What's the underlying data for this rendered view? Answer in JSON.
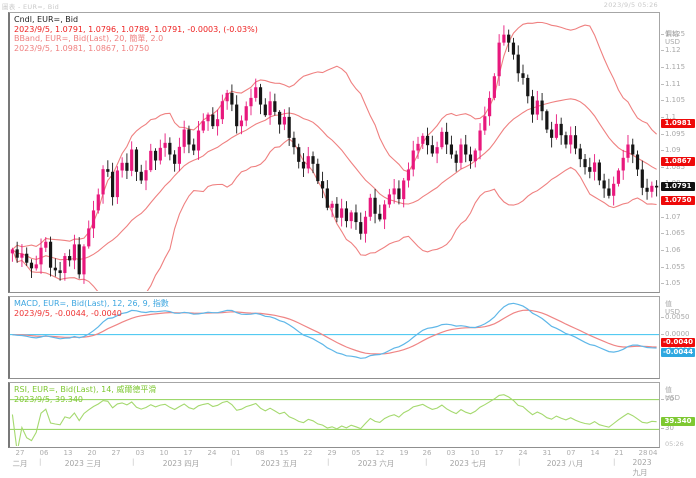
{
  "window": {
    "top_left_note": "圖表 - EUR=, Bid",
    "top_right_note": "2023/9/5 05:26"
  },
  "colors": {
    "up_candle": "#e8187d",
    "down_candle": "#161616",
    "bollinger": "#ef8080",
    "macd_line": "#5fb7e8",
    "signal_line": "#ef8585",
    "zero_line": "#3cc2f0",
    "rsi_line": "#a5d96f",
    "rsi_levels": "#8fd257",
    "badge_red": "#ee0a0a",
    "badge_black": "#111111",
    "badge_blue": "#2ea8e0",
    "badge_green": "#7ec832",
    "axis_text": "#a9a9a9"
  },
  "price_panel": {
    "legend": [
      {
        "text": "Cndl, EUR=, Bid",
        "color": "#222222"
      },
      {
        "text": "2023/9/5, 1.0791, 1.0796, 1.0789, 1.0791, -0.0003, (-0.03%)",
        "color": "#ee2222"
      },
      {
        "text": "BBand, EUR=, Bid(Last), 20, 簡單, 2.0",
        "color": "#ef8080"
      },
      {
        "text": "2023/9/5, 1.0981, 1.0867, 1.0750",
        "color": "#ef8080"
      }
    ],
    "axis_title": "價格",
    "axis_unit": "USD",
    "ticks": [
      "1.125",
      "1.12",
      "1.115",
      "1.11",
      "1.105",
      "1.1",
      "1.095",
      "1.09",
      "1.085",
      "1.08",
      "1.075",
      "1.07",
      "1.065",
      "1.06",
      "1.055",
      "1.05"
    ],
    "badges": [
      {
        "label": "1.0981",
        "value": 1.0981,
        "bg": "badge_red"
      },
      {
        "label": "1.0867",
        "value": 1.0867,
        "bg": "badge_red"
      },
      {
        "label": "1.0791",
        "value": 1.0791,
        "bg": "badge_black"
      },
      {
        "label": "1.0750",
        "value": 1.075,
        "bg": "badge_red"
      }
    ]
  },
  "macd_panel": {
    "legend": [
      {
        "text": "MACD, EUR=, Bid(Last), 12, 26, 9, 指數",
        "color": "#3da6e0"
      },
      {
        "text": "2023/9/5, -0.0044, -0.0040",
        "color": "#ee3333"
      }
    ],
    "axis_title": "值",
    "axis_unit": "USD",
    "ticks": [
      "0.0050",
      "0.0000",
      "-0.0050"
    ],
    "badges": [
      {
        "label": "-0.0040",
        "value": -0.004,
        "bg": "badge_red"
      },
      {
        "label": "-0.0044",
        "value": -0.0044,
        "bg": "badge_blue"
      }
    ]
  },
  "rsi_panel": {
    "legend": [
      {
        "text": "RSI, EUR=, Bid(Last), 14, 威爾德平滑",
        "color": "#7ec832"
      },
      {
        "text": "2023/9/5, 39.340",
        "color": "#7ec832"
      }
    ],
    "axis_title": "值",
    "axis_unit": "USD",
    "ticks": [
      "70",
      "30"
    ],
    "levels": [
      70,
      30
    ],
    "badges": [
      {
        "label": "39.340",
        "value": 39.34,
        "bg": "badge_green"
      }
    ],
    "timestamp": "05:26"
  },
  "x_axis": {
    "week_labels": [
      "27",
      "06",
      "13",
      "20",
      "27",
      "03",
      "10",
      "17",
      "24",
      "01",
      "08",
      "15",
      "22",
      "29",
      "05",
      "12",
      "19",
      "26",
      "03",
      "10",
      "17",
      "24",
      "31",
      "07",
      "14",
      "21",
      "28",
      "04"
    ],
    "months": [
      {
        "label": "二月",
        "f": 0.018
      },
      {
        "label": "2023 三月",
        "f": 0.115
      },
      {
        "label": "2023 四月",
        "f": 0.265
      },
      {
        "label": "2023 五月",
        "f": 0.415
      },
      {
        "label": "2023 六月",
        "f": 0.565
      },
      {
        "label": "2023 七月",
        "f": 0.705
      },
      {
        "label": "2023 八月",
        "f": 0.855
      },
      {
        "label": "2023 九月",
        "f": 0.972
      }
    ],
    "separators": [
      0.048,
      0.19,
      0.34,
      0.49,
      0.64,
      0.782,
      0.928
    ]
  },
  "chart_data": {
    "type": "candlestick",
    "symbol": "EUR=",
    "quote": "Bid",
    "interval": "daily",
    "period": "2023-02-23 to 2023-09-05",
    "ylim_price": [
      1.048,
      1.1315
    ],
    "last_candle": {
      "date": "2023/9/5",
      "open": 1.0791,
      "high": 1.0796,
      "low": 1.0789,
      "close": 1.0791,
      "change": -0.0003,
      "change_pct": "-0.03%"
    },
    "indicators": {
      "bollinger": {
        "period": 20,
        "method": "簡單",
        "width": 2.0,
        "last_upper": 1.0981,
        "last_middle": 1.0867,
        "last_lower": 1.075
      },
      "macd": {
        "fast": 12,
        "slow": 26,
        "signal": 9,
        "method": "指數",
        "last_macd": -0.0044,
        "last_signal": -0.004
      },
      "rsi": {
        "period": 14,
        "method": "威爾德平滑",
        "last": 39.34,
        "overbought": 70,
        "oversold": 30
      }
    },
    "closes": [
      1.0605,
      1.058,
      1.0592,
      1.0565,
      1.0548,
      1.056,
      1.061,
      1.0628,
      1.055,
      1.0542,
      1.0534,
      1.0585,
      1.0572,
      1.062,
      1.053,
      1.0614,
      1.0668,
      1.0722,
      1.077,
      1.0846,
      1.0838,
      1.0762,
      1.0842,
      1.0865,
      1.0841,
      1.0905,
      1.0838,
      1.0812,
      1.0843,
      1.0901,
      1.0872,
      1.091,
      1.0925,
      1.089,
      1.0862,
      1.0913,
      1.0965,
      1.092,
      1.0902,
      1.0962,
      1.099,
      1.101,
      1.0975,
      1.0996,
      1.105,
      1.1075,
      1.104,
      1.0975,
      1.0992,
      1.1035,
      1.106,
      1.1092,
      1.104,
      1.1008,
      1.105,
      1.1018,
      1.098,
      1.1003,
      1.094,
      1.0912,
      1.0868,
      1.0848,
      1.0885,
      1.0862,
      1.081,
      1.0788,
      1.073,
      1.0742,
      1.07,
      1.0728,
      1.069,
      1.0716,
      1.0687,
      1.0652,
      1.0703,
      1.076,
      1.0712,
      1.0695,
      1.074,
      1.077,
      1.0788,
      1.0756,
      1.0812,
      1.0845,
      1.0902,
      1.0922,
      1.0946,
      1.0918,
      1.0893,
      1.0912,
      1.0958,
      1.092,
      1.089,
      1.0865,
      1.092,
      1.089,
      1.087,
      1.0902,
      1.0962,
      1.1005,
      1.106,
      1.1125,
      1.1226,
      1.125,
      1.1226,
      1.119,
      1.1134,
      1.112,
      1.1065,
      1.101,
      1.1052,
      1.102,
      1.0965,
      1.094,
      1.0982,
      1.0948,
      1.092,
      1.0948,
      1.0908,
      1.0876,
      1.0852,
      1.0838,
      1.0866,
      1.0812,
      1.0788,
      1.0766,
      1.0802,
      1.0842,
      1.088,
      1.092,
      1.089,
      1.0845,
      1.079,
      1.0778,
      1.0796,
      1.0791
    ]
  }
}
